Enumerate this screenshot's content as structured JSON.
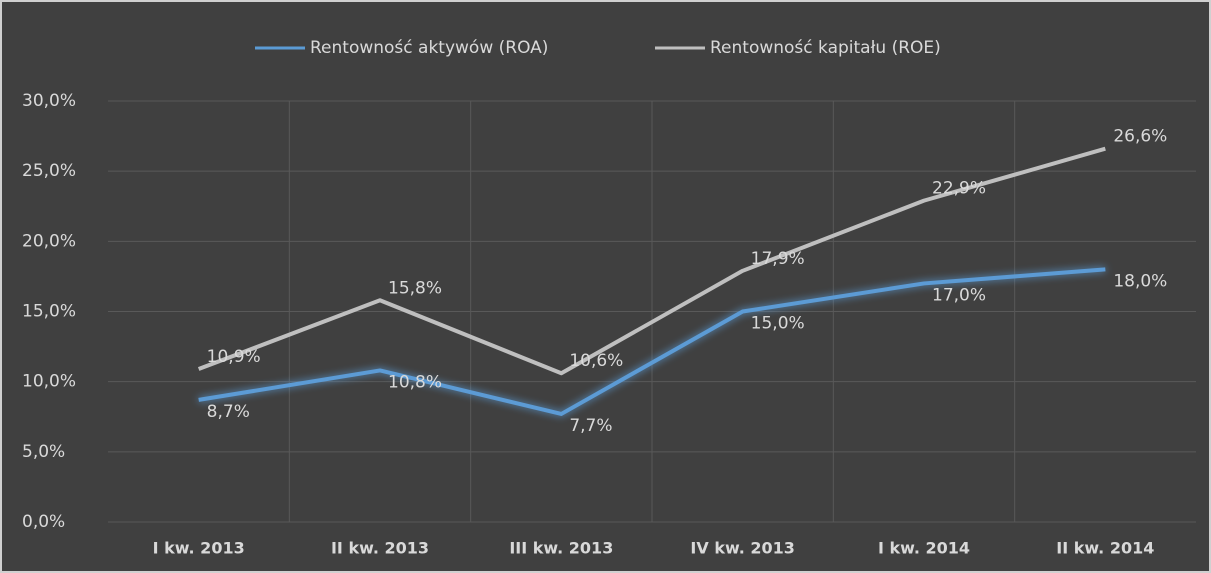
{
  "chart_data": {
    "type": "line",
    "categories": [
      "I kw. 2013",
      "II kw. 2013",
      "III kw. 2013",
      "IV kw. 2013",
      "I kw. 2014",
      "II kw. 2014"
    ],
    "series": [
      {
        "name": "Rentowność aktywów (ROA)",
        "color": "#5b9bd5",
        "values": [
          8.7,
          10.8,
          7.7,
          15.0,
          17.0,
          18.0
        ],
        "value_labels": [
          "8,7%",
          "10,8%",
          "7,7%",
          "15,0%",
          "17,0%",
          "18,0%"
        ]
      },
      {
        "name": "Rentowność kapitału (ROE)",
        "color": "#bfbfbf",
        "values": [
          10.9,
          15.8,
          10.6,
          17.9,
          22.9,
          26.6
        ],
        "value_labels": [
          "10,9%",
          "15,8%",
          "10,6%",
          "17,9%",
          "22,9%",
          "26,6%"
        ]
      }
    ],
    "ylim": [
      0,
      30
    ],
    "yticks": [
      {
        "value": 0,
        "label": "0,0%"
      },
      {
        "value": 5,
        "label": "5,0%"
      },
      {
        "value": 10,
        "label": "10,0%"
      },
      {
        "value": 15,
        "label": "15,0%"
      },
      {
        "value": 20,
        "label": "20,0%"
      },
      {
        "value": 25,
        "label": "25,0%"
      },
      {
        "value": 30,
        "label": "30,0%"
      }
    ],
    "grid": true,
    "legend": "top"
  }
}
